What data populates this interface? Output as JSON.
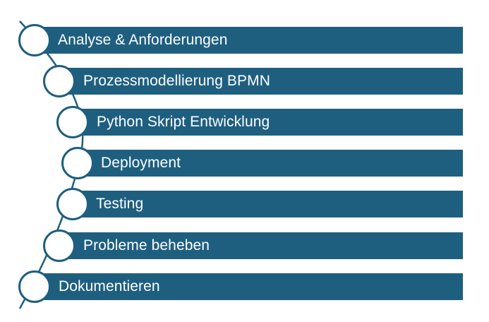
{
  "colors": {
    "bar": "#1e5f80",
    "text": "#ffffff",
    "connector": "#1e5f80"
  },
  "steps": [
    {
      "label": "Analyse & Anforderungen"
    },
    {
      "label": "Prozessmodellierung BPMN"
    },
    {
      "label": "Python Skript Entwicklung"
    },
    {
      "label": "Deployment"
    },
    {
      "label": "Testing"
    },
    {
      "label": "Probleme beheben"
    },
    {
      "label": "Dokumentieren"
    }
  ]
}
